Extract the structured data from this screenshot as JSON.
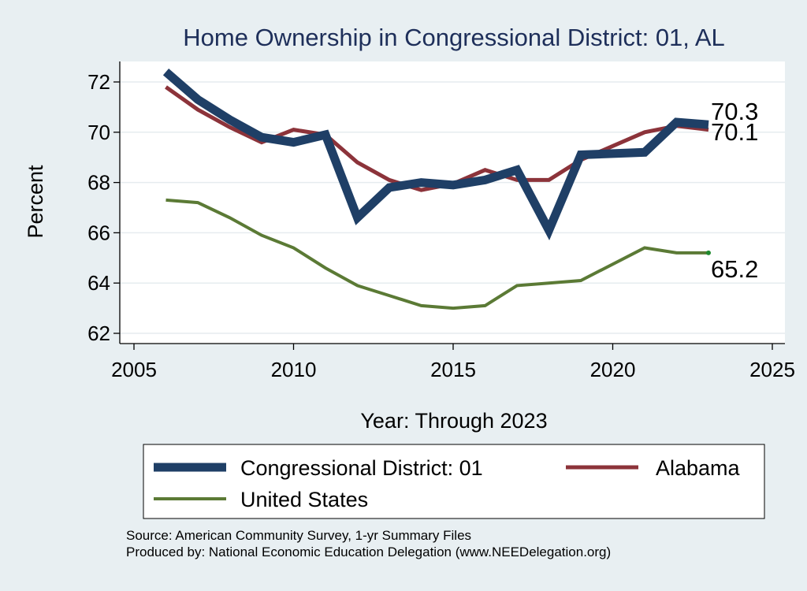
{
  "chart_data": {
    "type": "line",
    "title": "Home Ownership in Congressional District:  01, AL",
    "xlabel": "Year: Through 2023",
    "ylabel": "Percent",
    "xlim": [
      2005,
      2025
    ],
    "ylim": [
      62,
      73
    ],
    "xticks": [
      2005,
      2010,
      2015,
      2020,
      2025
    ],
    "yticks": [
      62,
      64,
      66,
      68,
      70,
      72
    ],
    "grid": true,
    "legend_position": "bottom",
    "x": [
      2006,
      2007,
      2008,
      2009,
      2010,
      2011,
      2012,
      2013,
      2014,
      2015,
      2016,
      2017,
      2018,
      2019,
      2021,
      2022,
      2023
    ],
    "series": [
      {
        "name": "Congressional District:  01",
        "color": "#1f3f66",
        "values": [
          72.4,
          71.3,
          70.5,
          69.8,
          69.6,
          69.9,
          66.6,
          67.8,
          68.0,
          67.9,
          68.1,
          68.5,
          66.1,
          69.1,
          69.2,
          70.4,
          70.3
        ],
        "end_label": "70.3"
      },
      {
        "name": "Alabama",
        "color": "#8c333a",
        "values": [
          71.8,
          70.9,
          70.2,
          69.6,
          70.1,
          69.9,
          68.8,
          68.1,
          67.7,
          67.95,
          68.5,
          68.1,
          68.1,
          68.9,
          70.0,
          70.25,
          70.1
        ],
        "end_label": "70.1"
      },
      {
        "name": "United States",
        "color": "#5b7a35",
        "values": [
          67.3,
          67.2,
          66.6,
          65.9,
          65.4,
          64.6,
          63.9,
          63.5,
          63.1,
          63.0,
          63.1,
          63.9,
          64.0,
          64.1,
          65.4,
          65.2,
          65.2
        ],
        "end_label": "65.2"
      }
    ],
    "source_line": "Source: American Community Survey, 1-yr Summary Files",
    "producer_line": "Produced by: National Economic Education Delegation (www.NEEDelegation.org)"
  }
}
